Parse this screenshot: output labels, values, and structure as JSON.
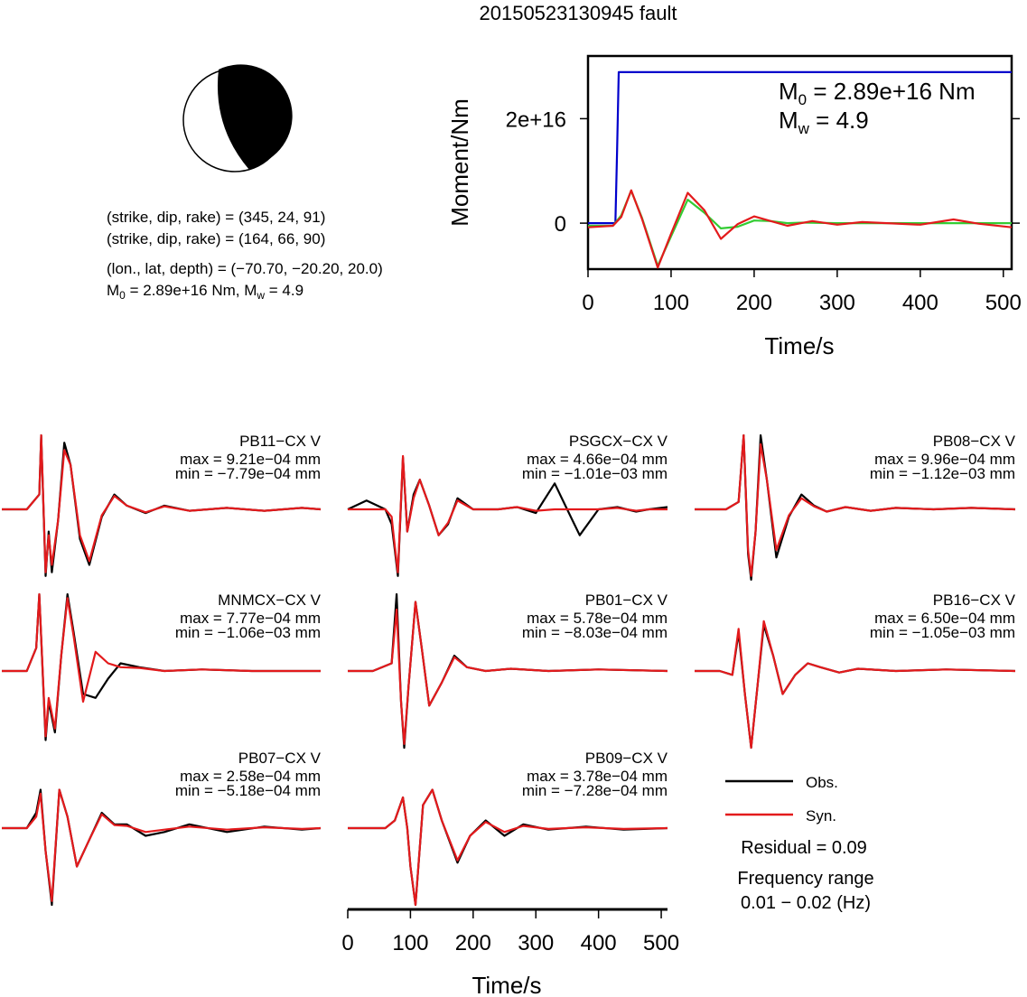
{
  "title": "20150523130945 fault",
  "mechanism": {
    "plane1": "(strike, dip, rake) = (345, 24, 91)",
    "plane2": "(strike, dip, rake) = (164, 66, 90)",
    "location": "(lon., lat, depth) = (−70.70, −20.20, 20.0)",
    "m0_prefix": "M",
    "m0_sub": "0",
    "m0_rest": " = 2.89e+16 Nm, M",
    "mw_sub": "w",
    "mw_rest": " = 4.9"
  },
  "moment_panel": {
    "m0_label": "M",
    "m0_sub": "0",
    "m0_value": " = 2.89e+16 Nm",
    "mw_label": "M",
    "mw_sub": "w",
    "mw_value": " = 4.9"
  },
  "stations_bottom_axis": {
    "xlabel": "Time/s",
    "ticks": [
      "0",
      "100",
      "200",
      "300",
      "400",
      "500"
    ]
  },
  "legend": {
    "obs": "Obs.",
    "syn": "Syn.",
    "residual": "Residual = 0.09",
    "freq_title": "Frequency range",
    "freq_value": "0.01 − 0.02 (Hz)"
  },
  "colors": {
    "observed": "#000000",
    "synthetic": "#e31a1c",
    "moment": "#0000cc",
    "stf": "#33cc33"
  },
  "chart_data": [
    {
      "type": "line",
      "id": "moment-rate",
      "xlabel": "Time/s",
      "ylabel": "Moment/Nm",
      "xlim": [
        0,
        510
      ],
      "ylim": [
        -8800000000000000.0,
        3.2e+16
      ],
      "xticks": [
        0,
        100,
        200,
        300,
        400,
        500
      ],
      "xtick_labels": [
        "0",
        "100",
        "200",
        "300",
        "400",
        "500"
      ],
      "yticks": [
        0,
        2e+16
      ],
      "ytick_labels": [
        "0",
        "2e+16"
      ],
      "series": [
        {
          "name": "",
          "color": "#0000cc",
          "x": [
            0,
            33,
            35,
            37,
            40,
            510
          ],
          "y": [
            0,
            0,
            1.4e+16,
            2.89e+16,
            2.89e+16,
            2.89e+16
          ]
        },
        {
          "name": "",
          "color": "#33cc33",
          "x": [
            0,
            30,
            40,
            52,
            65,
            84,
            100,
            120,
            140,
            160,
            180,
            200,
            220,
            240,
            260,
            300,
            400,
            510
          ],
          "y": [
            -500000000000000.0,
            -500000000000000.0,
            1500000000000000.0,
            6200000000000000.0,
            1000000000000000.0,
            -8200000000000000.0,
            -2500000000000000.0,
            4500000000000000.0,
            2000000000000000.0,
            -1000000000000000.0,
            -700000000000000.0,
            500000000000000.0,
            400000000000000.0,
            0.0,
            100000000000000.0,
            0.0,
            0.0,
            0.0
          ]
        },
        {
          "name": "",
          "color": "#e31a1c",
          "x": [
            0,
            30,
            40,
            52,
            65,
            84,
            100,
            120,
            140,
            160,
            180,
            200,
            220,
            240,
            270,
            300,
            330,
            360,
            400,
            440,
            470,
            510
          ],
          "y": [
            -800000000000000.0,
            -500000000000000.0,
            1200000000000000.0,
            6300000000000000.0,
            800000000000000.0,
            -8500000000000000.0,
            -2000000000000000.0,
            5800000000000000.0,
            2500000000000000.0,
            -3000000000000000.0,
            -200000000000000.0,
            1300000000000000.0,
            400000000000000.0,
            -500000000000000.0,
            400000000000000.0,
            -300000000000000.0,
            200000000000000.0,
            0.0,
            -300000000000000.0,
            700000000000000.0,
            -100000000000000.0,
            -800000000000000.0
          ]
        }
      ]
    },
    {
      "type": "line",
      "id": "waveforms",
      "xlabel": "Time/s",
      "xlim": [
        0,
        510
      ],
      "stations": [
        {
          "name": "PB11−CX V",
          "max": "max = 9.21e−04 mm",
          "min": "min = −7.79e−04 mm",
          "obs": {
            "t": [
              0,
              40,
              60,
              63,
              70,
              75,
              80,
              90,
              100,
              110,
              125,
              140,
              160,
              180,
              200,
              230,
              260,
              300,
              360,
              420,
              480,
              510
            ],
            "v": [
              0,
              0,
              0.2,
              1.0,
              -0.9,
              -0.3,
              -0.85,
              -0.15,
              0.9,
              0.6,
              -0.4,
              -0.75,
              -0.1,
              0.2,
              0.05,
              -0.05,
              0.05,
              -0.02,
              0.02,
              -0.02,
              0.02,
              0
            ]
          },
          "syn": {
            "t": [
              0,
              40,
              60,
              63,
              70,
              75,
              80,
              90,
              100,
              110,
              125,
              140,
              160,
              180,
              200,
              230,
              260,
              300,
              360,
              420,
              480,
              510
            ],
            "v": [
              0,
              0,
              0.2,
              1.0,
              -0.85,
              -0.35,
              -0.75,
              -0.15,
              0.8,
              0.6,
              -0.35,
              -0.7,
              -0.08,
              0.18,
              0.05,
              -0.04,
              0.04,
              -0.02,
              0.02,
              -0.02,
              0.02,
              0
            ]
          }
        },
        {
          "name": "PSGCX−CX V",
          "max": "max = 4.66e−04 mm",
          "min": "min = −1.01e−03 mm",
          "obs": {
            "t": [
              0,
              30,
              60,
              70,
              75,
              80,
              88,
              95,
              105,
              115,
              130,
              145,
              160,
              175,
              200,
              240,
              270,
              300,
              330,
              350,
              370,
              400,
              430,
              460,
              480,
              510
            ],
            "v": [
              0,
              0.12,
              0,
              -0.2,
              -0.55,
              -0.9,
              0.7,
              -0.3,
              0.2,
              0.4,
              0.05,
              -0.35,
              -0.2,
              0.15,
              0,
              0,
              0.03,
              -0.05,
              0.35,
              0,
              -0.35,
              0,
              0.03,
              -0.03,
              0,
              0.03
            ]
          },
          "syn": {
            "t": [
              0,
              30,
              60,
              70,
              75,
              80,
              88,
              95,
              105,
              115,
              130,
              145,
              160,
              175,
              200,
              240,
              270,
              300,
              330,
              350,
              370,
              400,
              430,
              460,
              480,
              510
            ],
            "v": [
              0,
              0,
              0,
              -0.1,
              -0.5,
              -0.85,
              0.72,
              -0.3,
              0.15,
              0.4,
              0.05,
              -0.35,
              -0.18,
              0.12,
              0,
              0,
              0.03,
              -0.02,
              0,
              0,
              0,
              0,
              0.02,
              -0.02,
              0,
              0
            ]
          }
        },
        {
          "name": "PB08−CX V",
          "max": "max = 9.96e−04 mm",
          "min": "min = −1.12e−03 mm",
          "obs": {
            "t": [
              0,
              50,
              70,
              78,
              85,
              90,
              97,
              105,
              115,
              130,
              150,
              170,
              190,
              210,
              240,
              280,
              320,
              380,
              440,
              510
            ],
            "v": [
              0,
              0,
              0.1,
              1.0,
              -0.6,
              -0.95,
              -0.3,
              1.0,
              0.4,
              -0.65,
              -0.1,
              0.2,
              0.05,
              -0.03,
              0.03,
              -0.02,
              0.02,
              0,
              0.02,
              0
            ]
          },
          "syn": {
            "t": [
              0,
              50,
              70,
              78,
              85,
              90,
              97,
              105,
              115,
              130,
              150,
              170,
              190,
              210,
              240,
              280,
              320,
              380,
              440,
              510
            ],
            "v": [
              0,
              0,
              0.1,
              1.0,
              -0.55,
              -0.9,
              -0.3,
              0.88,
              0.4,
              -0.55,
              -0.08,
              0.15,
              0.04,
              -0.03,
              0.03,
              -0.02,
              0.02,
              0,
              0.02,
              0
            ]
          }
        },
        {
          "name": "MNMCX−CX V",
          "max": "max = 7.77e−04 mm",
          "min": "min = −1.06e−03 mm",
          "obs": {
            "t": [
              0,
              40,
              55,
              60,
              70,
              75,
              85,
              95,
              105,
              115,
              130,
              150,
              170,
              190,
              220,
              260,
              320,
              400,
              510
            ],
            "v": [
              0,
              0,
              0.3,
              1.0,
              -0.9,
              -0.4,
              -0.8,
              0.2,
              1.0,
              0.5,
              -0.3,
              -0.35,
              -0.1,
              0.1,
              0.05,
              0,
              0.02,
              0,
              0
            ]
          },
          "syn": {
            "t": [
              0,
              40,
              55,
              60,
              70,
              75,
              85,
              95,
              105,
              115,
              130,
              150,
              170,
              190,
              220,
              260,
              320,
              400,
              510
            ],
            "v": [
              0,
              0,
              0.3,
              1.0,
              -0.85,
              -0.35,
              -0.75,
              0.2,
              0.95,
              0.45,
              -0.4,
              0.25,
              0.1,
              0.05,
              0.04,
              0,
              0.02,
              0,
              0
            ]
          }
        },
        {
          "name": "PB01−CX V",
          "max": "max = 5.78e−04 mm",
          "min": "min = −8.03e−04 mm",
          "obs": {
            "t": [
              0,
              40,
              70,
              78,
              85,
              90,
              97,
              108,
              118,
              130,
              150,
              170,
              190,
              220,
              260,
              320,
              400,
              510
            ],
            "v": [
              0,
              0,
              0.1,
              1.0,
              -0.4,
              -1.0,
              -0.2,
              0.9,
              0.3,
              -0.45,
              -0.15,
              0.2,
              0.05,
              0,
              0.03,
              0,
              0.02,
              0
            ]
          },
          "syn": {
            "t": [
              0,
              40,
              70,
              78,
              85,
              90,
              97,
              108,
              118,
              130,
              150,
              170,
              190,
              220,
              260,
              320,
              400,
              510
            ],
            "v": [
              0,
              0,
              0.1,
              0.8,
              -0.4,
              -0.95,
              -0.2,
              0.9,
              0.3,
              -0.45,
              -0.15,
              0.18,
              0.05,
              0,
              0.03,
              0,
              0.02,
              0
            ]
          }
        },
        {
          "name": "PB16−CX V",
          "max": "max = 6.50e−04 mm",
          "min": "min = −1.05e−03 mm",
          "obs": {
            "t": [
              0,
              40,
              60,
              70,
              80,
              90,
              100,
              110,
              125,
              140,
              160,
              180,
              200,
              230,
              260,
              320,
              400,
              510
            ],
            "v": [
              0,
              0,
              -0.05,
              0.5,
              -0.3,
              -1.0,
              -0.2,
              0.6,
              0.2,
              -0.3,
              -0.05,
              0.1,
              0.05,
              -0.02,
              0.03,
              0,
              0.02,
              0
            ]
          },
          "syn": {
            "t": [
              0,
              40,
              60,
              70,
              80,
              90,
              100,
              110,
              125,
              140,
              160,
              180,
              200,
              230,
              260,
              320,
              400,
              510
            ],
            "v": [
              0,
              0,
              -0.05,
              0.55,
              -0.3,
              -1.0,
              -0.2,
              0.65,
              0.2,
              -0.3,
              -0.05,
              0.1,
              0.05,
              -0.02,
              0.03,
              0,
              0.02,
              0
            ]
          }
        },
        {
          "name": "PB07−CX V",
          "max": "max = 2.58e−04 mm",
          "min": "min = −5.18e−04 mm",
          "obs": {
            "t": [
              0,
              40,
              55,
              62,
              70,
              80,
              92,
              105,
              120,
              140,
              160,
              180,
              200,
              230,
              260,
              300,
              360,
              420,
              480,
              510
            ],
            "v": [
              0,
              0,
              0.2,
              0.5,
              -0.3,
              -1.0,
              0.5,
              0.15,
              -0.5,
              -0.15,
              0.2,
              0.05,
              0.05,
              -0.1,
              -0.05,
              0.05,
              -0.05,
              0.02,
              -0.02,
              0
            ]
          },
          "syn": {
            "t": [
              0,
              40,
              55,
              62,
              70,
              80,
              92,
              105,
              120,
              140,
              160,
              180,
              200,
              230,
              260,
              300,
              360,
              420,
              480,
              510
            ],
            "v": [
              0,
              0,
              0.15,
              0.45,
              -0.3,
              -0.95,
              0.5,
              0.15,
              -0.5,
              -0.15,
              0.18,
              0.04,
              0.03,
              -0.05,
              -0.02,
              0.02,
              -0.02,
              0.01,
              -0.01,
              0
            ]
          }
        },
        {
          "name": "PB09−CX V",
          "max": "max = 3.78e−04 mm",
          "min": "min = −7.28e−04 mm",
          "obs": {
            "t": [
              0,
              40,
              60,
              75,
              88,
              95,
              100,
              108,
              120,
              135,
              150,
              175,
              195,
              220,
              250,
              280,
              320,
              380,
              440,
              510
            ],
            "v": [
              0,
              0,
              0,
              0.1,
              0.4,
              0,
              -0.5,
              -1.0,
              0.3,
              0.5,
              0.1,
              -0.45,
              -0.1,
              0.1,
              -0.1,
              0.05,
              -0.02,
              0.02,
              -0.02,
              0
            ]
          },
          "syn": {
            "t": [
              0,
              40,
              60,
              75,
              88,
              95,
              100,
              108,
              120,
              135,
              150,
              175,
              195,
              220,
              250,
              280,
              320,
              380,
              440,
              510
            ],
            "v": [
              0,
              0,
              0,
              0.1,
              0.4,
              0,
              -0.5,
              -1.0,
              0.3,
              0.5,
              0.1,
              -0.42,
              -0.1,
              0.08,
              -0.05,
              0.03,
              -0.01,
              0.01,
              -0.01,
              0
            ]
          }
        }
      ]
    }
  ]
}
